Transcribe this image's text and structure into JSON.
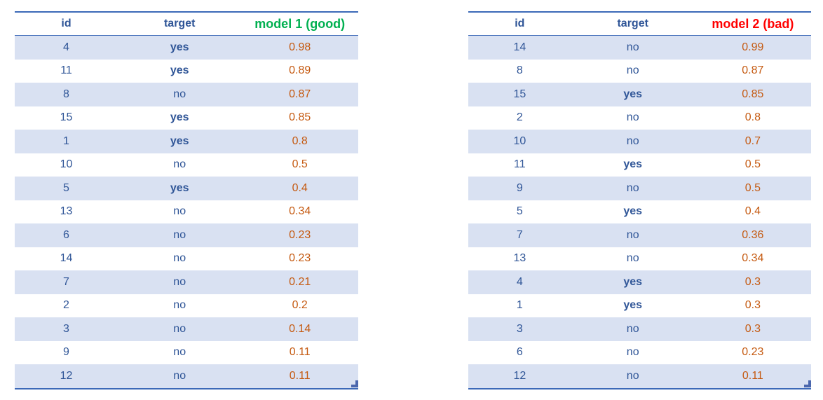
{
  "colors": {
    "header_text": "#2F5597",
    "value_text": "#C55A11",
    "band_fill": "#D9E1F2",
    "border_blue": "#3C69B8",
    "model1_header": "#00B050",
    "model2_header": "#FF0000"
  },
  "tables": [
    {
      "title": "model 1 (good)",
      "columns": [
        "id",
        "target",
        "model 1 (good)"
      ],
      "model_header_color": "#00B050",
      "rows": [
        {
          "id": 4,
          "target": "yes",
          "score": "0.98"
        },
        {
          "id": 11,
          "target": "yes",
          "score": "0.89"
        },
        {
          "id": 8,
          "target": "no",
          "score": "0.87"
        },
        {
          "id": 15,
          "target": "yes",
          "score": "0.85"
        },
        {
          "id": 1,
          "target": "yes",
          "score": "0.8"
        },
        {
          "id": 10,
          "target": "no",
          "score": "0.5"
        },
        {
          "id": 5,
          "target": "yes",
          "score": "0.4"
        },
        {
          "id": 13,
          "target": "no",
          "score": "0.34"
        },
        {
          "id": 6,
          "target": "no",
          "score": "0.23"
        },
        {
          "id": 14,
          "target": "no",
          "score": "0.23"
        },
        {
          "id": 7,
          "target": "no",
          "score": "0.21"
        },
        {
          "id": 2,
          "target": "no",
          "score": "0.2"
        },
        {
          "id": 3,
          "target": "no",
          "score": "0.14"
        },
        {
          "id": 9,
          "target": "no",
          "score": "0.11"
        },
        {
          "id": 12,
          "target": "no",
          "score": "0.11"
        }
      ]
    },
    {
      "title": "model 2 (bad)",
      "columns": [
        "id",
        "target",
        "model 2 (bad)"
      ],
      "model_header_color": "#FF0000",
      "rows": [
        {
          "id": 14,
          "target": "no",
          "score": "0.99"
        },
        {
          "id": 8,
          "target": "no",
          "score": "0.87"
        },
        {
          "id": 15,
          "target": "yes",
          "score": "0.85"
        },
        {
          "id": 2,
          "target": "no",
          "score": "0.8"
        },
        {
          "id": 10,
          "target": "no",
          "score": "0.7"
        },
        {
          "id": 11,
          "target": "yes",
          "score": "0.5"
        },
        {
          "id": 9,
          "target": "no",
          "score": "0.5"
        },
        {
          "id": 5,
          "target": "yes",
          "score": "0.4"
        },
        {
          "id": 7,
          "target": "no",
          "score": "0.36"
        },
        {
          "id": 13,
          "target": "no",
          "score": "0.34"
        },
        {
          "id": 4,
          "target": "yes",
          "score": "0.3"
        },
        {
          "id": 1,
          "target": "yes",
          "score": "0.3"
        },
        {
          "id": 3,
          "target": "no",
          "score": "0.3"
        },
        {
          "id": 6,
          "target": "no",
          "score": "0.23"
        },
        {
          "id": 12,
          "target": "no",
          "score": "0.11"
        }
      ]
    }
  ]
}
